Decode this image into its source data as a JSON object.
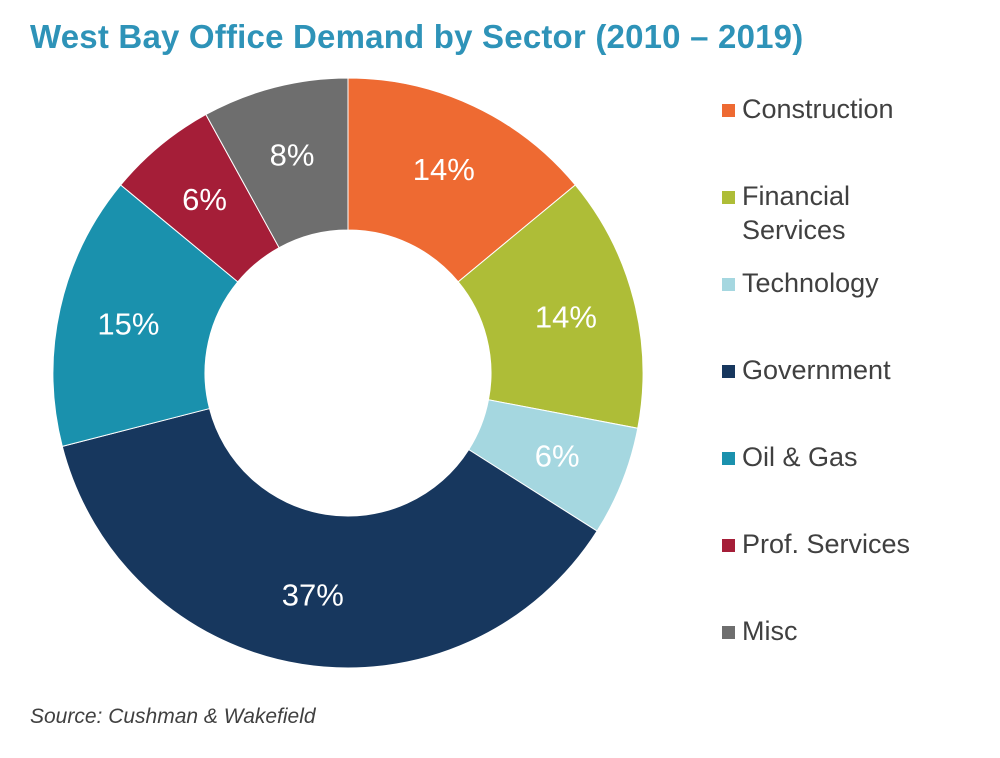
{
  "chart_data": {
    "type": "pie",
    "variant": "donut",
    "title": "West Bay Office Demand by Sector (2010 – 2019)",
    "unit": "%",
    "slices": [
      {
        "label": "Construction",
        "value": 14,
        "display": "14%",
        "color": "#ee6a32"
      },
      {
        "label": "Financial Services",
        "value": 14,
        "display": "14%",
        "color": "#aebd37"
      },
      {
        "label": "Technology",
        "value": 6,
        "display": "6%",
        "color": "#a5d7e0"
      },
      {
        "label": "Government",
        "value": 37,
        "display": "37%",
        "color": "#17375e"
      },
      {
        "label": "Oil & Gas",
        "value": 15,
        "display": "15%",
        "color": "#1a91ad"
      },
      {
        "label": "Prof. Services",
        "value": 6,
        "display": "6%",
        "color": "#a51e38"
      },
      {
        "label": "Misc",
        "value": 8,
        "display": "8%",
        "color": "#6e6e6e"
      }
    ],
    "start_angle": "12 o'clock",
    "direction": "clockwise",
    "legend_position": "right"
  },
  "source": "Source: Cushman & Wakefield"
}
